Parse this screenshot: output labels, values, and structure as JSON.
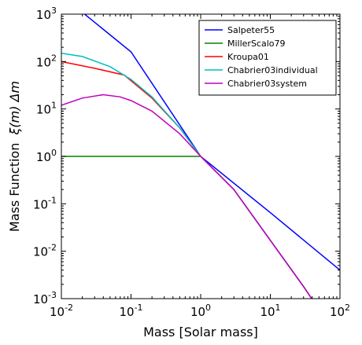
{
  "chart_data": {
    "type": "line",
    "xlabel": "Mass [Solar mass]",
    "ylabel_prefix": "Mass Function",
    "ylabel_math": "ξ(m) Δm",
    "xscale": "log",
    "yscale": "log",
    "xlim": [
      0.01,
      100
    ],
    "ylim": [
      0.001,
      1000
    ],
    "xticks": [
      {
        "base": "10",
        "exp": "-2",
        "value": 0.01
      },
      {
        "base": "10",
        "exp": "-1",
        "value": 0.1
      },
      {
        "base": "10",
        "exp": "0",
        "value": 1
      },
      {
        "base": "10",
        "exp": "1",
        "value": 10
      },
      {
        "base": "10",
        "exp": "2",
        "value": 100
      }
    ],
    "yticks": [
      {
        "base": "10",
        "exp": "-3",
        "value": 0.001
      },
      {
        "base": "10",
        "exp": "-2",
        "value": 0.01
      },
      {
        "base": "10",
        "exp": "-1",
        "value": 0.1
      },
      {
        "base": "10",
        "exp": "0",
        "value": 1
      },
      {
        "base": "10",
        "exp": "1",
        "value": 10
      },
      {
        "base": "10",
        "exp": "2",
        "value": 100
      },
      {
        "base": "10",
        "exp": "3",
        "value": 1000
      }
    ],
    "legend_position": "top-right",
    "grid": false,
    "series": [
      {
        "name": "Salpeter55",
        "color": "#0000ff",
        "x": [
          0.01,
          0.1,
          1,
          10,
          100
        ],
        "y": [
          2500,
          160,
          1,
          0.065,
          0.004
        ]
      },
      {
        "name": "MillerScalo79",
        "color": "#008000",
        "x": [
          0.01,
          0.1,
          0.3,
          1,
          3,
          10,
          30,
          100
        ],
        "y": [
          1,
          1,
          1,
          1,
          0.2,
          0.017,
          0.0018,
          0.00013
        ]
      },
      {
        "name": "Kroupa01",
        "color": "#ff0000",
        "x": [
          0.01,
          0.03,
          0.08,
          0.2,
          0.5,
          1,
          3,
          10,
          30,
          100
        ],
        "y": [
          100,
          72,
          52,
          17,
          4.0,
          1,
          0.2,
          0.017,
          0.0018,
          0.00013
        ]
      },
      {
        "name": "Chabrier03individual",
        "color": "#00bfbf",
        "x": [
          0.01,
          0.02,
          0.05,
          0.1,
          0.2,
          0.5,
          1,
          3,
          10,
          30,
          100
        ],
        "y": [
          150,
          128,
          78,
          42,
          18,
          4.0,
          1,
          0.2,
          0.017,
          0.0018,
          0.00013
        ]
      },
      {
        "name": "Chabrier03system",
        "color": "#bf00bf",
        "x": [
          0.01,
          0.02,
          0.04,
          0.07,
          0.1,
          0.2,
          0.5,
          1,
          3,
          10,
          30,
          100
        ],
        "y": [
          12,
          17,
          20,
          18,
          15,
          9,
          3.0,
          1,
          0.2,
          0.017,
          0.0018,
          0.00013
        ]
      }
    ]
  }
}
